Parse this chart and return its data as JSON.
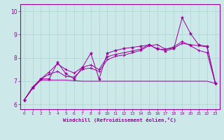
{
  "xlabel": "Windchill (Refroidissement éolien,°C)",
  "xlim": [
    -0.5,
    23.5
  ],
  "ylim": [
    5.8,
    10.3
  ],
  "bg_color": "#cce8e8",
  "line_color": "#990099",
  "grid_color": "#aad4d4",
  "xticks": [
    0,
    1,
    2,
    3,
    4,
    5,
    6,
    7,
    8,
    9,
    10,
    11,
    12,
    13,
    14,
    15,
    16,
    17,
    18,
    19,
    20,
    21,
    22,
    23
  ],
  "yticks": [
    6,
    7,
    8,
    9,
    10
  ],
  "line1_x": [
    0,
    1,
    2,
    3,
    4,
    5,
    6,
    7,
    8,
    9,
    10,
    11,
    12,
    13,
    14,
    15,
    16,
    17,
    18,
    19,
    20,
    21,
    22,
    23
  ],
  "line1_y": [
    6.2,
    6.72,
    7.1,
    7.1,
    7.8,
    7.32,
    7.1,
    7.6,
    8.2,
    7.1,
    8.2,
    8.32,
    8.4,
    8.45,
    8.5,
    8.55,
    8.4,
    8.3,
    8.4,
    9.72,
    9.05,
    8.55,
    8.5,
    6.9
  ],
  "line2_x": [
    0,
    1,
    2,
    3,
    4,
    5,
    6,
    7,
    8,
    9,
    10,
    11,
    12,
    13,
    14,
    15,
    16,
    17,
    18,
    19,
    20,
    21,
    22,
    23
  ],
  "line2_y": [
    6.2,
    6.7,
    7.1,
    7.3,
    7.42,
    7.2,
    7.18,
    7.52,
    7.56,
    7.42,
    7.92,
    8.07,
    8.12,
    8.22,
    8.32,
    8.52,
    8.57,
    8.37,
    8.42,
    8.62,
    8.57,
    8.52,
    8.47,
    6.9
  ],
  "line3_x": [
    0,
    1,
    2,
    3,
    4,
    5,
    6,
    7,
    8,
    9,
    10,
    11,
    12,
    13,
    14,
    15,
    16,
    17,
    18,
    19,
    20,
    21,
    22,
    23
  ],
  "line3_y": [
    6.2,
    6.75,
    7.1,
    7.4,
    7.75,
    7.5,
    7.35,
    7.6,
    7.7,
    7.5,
    8.05,
    8.15,
    8.22,
    8.3,
    8.37,
    8.57,
    8.37,
    8.37,
    8.47,
    8.7,
    8.52,
    8.32,
    8.22,
    6.9
  ],
  "line4_x": [
    0,
    1,
    2,
    3,
    4,
    5,
    6,
    7,
    8,
    9,
    10,
    11,
    12,
    13,
    14,
    15,
    16,
    17,
    18,
    19,
    20,
    21,
    22,
    23
  ],
  "line4_y": [
    6.2,
    6.7,
    7.05,
    7.05,
    7.05,
    7.05,
    7.02,
    7.0,
    7.0,
    7.0,
    7.0,
    7.0,
    7.0,
    7.0,
    7.0,
    7.0,
    7.0,
    7.0,
    7.0,
    7.0,
    7.0,
    7.0,
    7.0,
    6.9
  ]
}
